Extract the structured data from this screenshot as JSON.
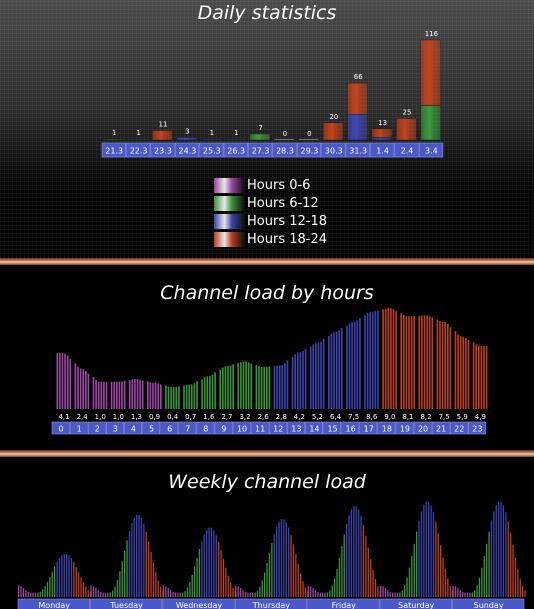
{
  "colors": {
    "h0_6": "#a84bb0",
    "h6_12": "#3d9f3d",
    "h12_18": "#3f48b8",
    "h18_24": "#c8441c",
    "label_box": "#4a58c8"
  },
  "chart_data": [
    {
      "type": "bar",
      "title": "Daily statistics",
      "categories": [
        "21.3",
        "22.3",
        "23.3",
        "24.3",
        "25.3",
        "26.3",
        "27.3",
        "28.3",
        "29.3",
        "30.3",
        "31.3",
        "1.4",
        "2.4",
        "3.4"
      ],
      "totals": [
        1,
        1,
        11,
        3,
        1,
        1,
        7,
        0,
        0,
        20,
        66,
        13,
        25,
        116
      ],
      "series": [
        {
          "name": "Hours 0-6",
          "values": [
            0,
            0,
            0,
            0,
            0,
            0,
            0,
            0,
            0,
            0,
            0,
            0,
            0,
            0
          ]
        },
        {
          "name": "Hours 6-12",
          "values": [
            1,
            0,
            0,
            0,
            0,
            0,
            7,
            0,
            0,
            0,
            0,
            0,
            0,
            40
          ]
        },
        {
          "name": "Hours 12-18",
          "values": [
            0,
            1,
            0,
            3,
            1,
            1,
            0,
            0,
            0,
            0,
            30,
            3,
            0,
            0
          ]
        },
        {
          "name": "Hours 18-24",
          "values": [
            0,
            0,
            11,
            0,
            0,
            0,
            0,
            0,
            0,
            20,
            36,
            10,
            25,
            76
          ]
        }
      ],
      "legend": [
        "Hours 0-6",
        "Hours 6-12",
        "Hours 12-18",
        "Hours 18-24"
      ],
      "legend_position": "bottom-center"
    },
    {
      "type": "bar",
      "title": "Channel load by hours",
      "categories": [
        "0",
        "1",
        "2",
        "3",
        "4",
        "5",
        "6",
        "7",
        "8",
        "9",
        "10",
        "11",
        "12",
        "13",
        "14",
        "15",
        "16",
        "17",
        "18",
        "19",
        "20",
        "21",
        "22",
        "23"
      ],
      "values": [
        4.1,
        2.4,
        1.0,
        1.0,
        1.3,
        0.9,
        0.4,
        0.7,
        1.6,
        2.7,
        3.2,
        2.6,
        2.8,
        4.2,
        5.2,
        6.4,
        7.5,
        8.6,
        9.0,
        8.1,
        8.2,
        7.5,
        5.9,
        4.9
      ],
      "value_labels": [
        "4,1",
        "2,4",
        "1,0",
        "1,0",
        "1,3",
        "0,9",
        "0,4",
        "0,7",
        "1,6",
        "2,7",
        "3,2",
        "2,6",
        "2,8",
        "4,2",
        "5,2",
        "6,4",
        "7,5",
        "8,6",
        "9,0",
        "8,1",
        "8,2",
        "7,5",
        "5,9",
        "4,9"
      ]
    },
    {
      "type": "area",
      "title": "Weekly channel load",
      "categories": [
        "Monday",
        "Tuesday",
        "Wednesday",
        "Thursday",
        "Friday",
        "Saturday",
        "Sunday"
      ],
      "peaks": [
        4.5,
        9.0,
        7.5,
        8.5,
        10.0,
        10.5,
        10.5
      ]
    }
  ]
}
